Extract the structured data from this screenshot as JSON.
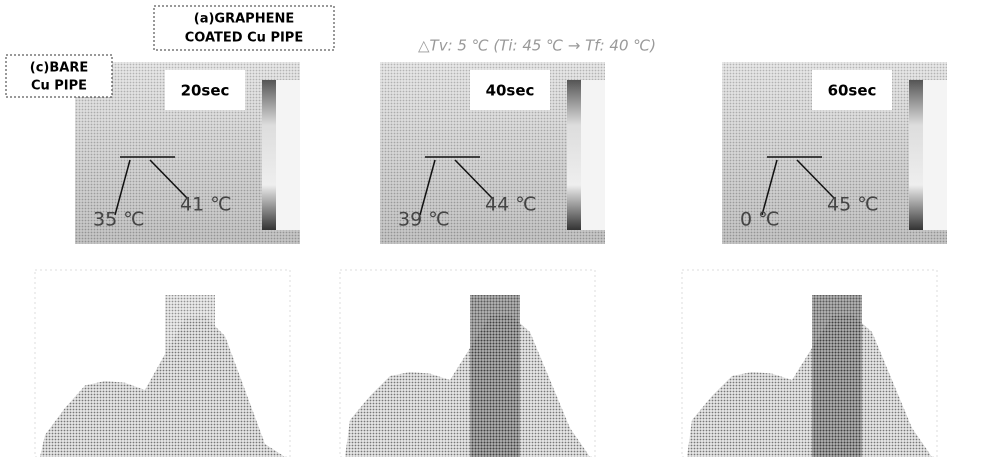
{
  "header": {
    "annotation": "△Tv: 5 ℃ (Ti: 45 ℃ → Tf: 40 ℃)"
  },
  "labels": {
    "graphene": [
      "(a)GRAPHENE",
      "COATED Cu PIPE"
    ],
    "bare": [
      "(c)BARE",
      "Cu PIPE"
    ]
  },
  "panels": [
    {
      "time": "20sec",
      "left_temp": "35 ℃",
      "right_temp": "41 ℃"
    },
    {
      "time": "40sec",
      "left_temp": "39 ℃",
      "right_temp": "44 ℃"
    },
    {
      "time": "60sec",
      "left_temp": "0 ℃",
      "right_temp": "45 ℃"
    }
  ]
}
